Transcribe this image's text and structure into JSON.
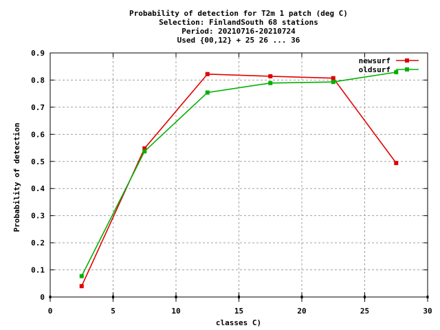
{
  "chart_data": {
    "type": "line",
    "title_lines": [
      "Probability of detection  for T2m 1 patch (deg C)",
      "Selection: FinlandSouth     68 stations",
      "Period: 20210716-20210724",
      "Used {00,12} + 25 26 ... 36"
    ],
    "xlabel": "classes C)",
    "ylabel": "Probability of detection",
    "xlim": [
      0,
      30
    ],
    "ylim": [
      0,
      0.9
    ],
    "x_ticks": [
      "0",
      "5",
      "10",
      "15",
      "20",
      "25",
      "30"
    ],
    "y_ticks": [
      "0",
      "0.1",
      "0.2",
      "0.3",
      "0.4",
      "0.5",
      "0.6",
      "0.7",
      "0.8",
      "0.9"
    ],
    "grid": true,
    "legend_position": "top-right",
    "series": [
      {
        "name": "newsurf",
        "color": "#e00000",
        "x": [
          2.5,
          7.5,
          12.5,
          17.5,
          22.5,
          27.5
        ],
        "y": [
          0.04,
          0.548,
          0.822,
          0.814,
          0.807,
          0.494
        ]
      },
      {
        "name": "oldsurf",
        "color": "#00b000",
        "x": [
          2.5,
          7.5,
          12.5,
          17.5,
          22.5,
          27.5
        ],
        "y": [
          0.077,
          0.537,
          0.754,
          0.789,
          0.793,
          0.829
        ]
      }
    ],
    "count_markers_x": [
      0,
      5,
      10,
      15,
      20,
      25,
      30
    ]
  }
}
